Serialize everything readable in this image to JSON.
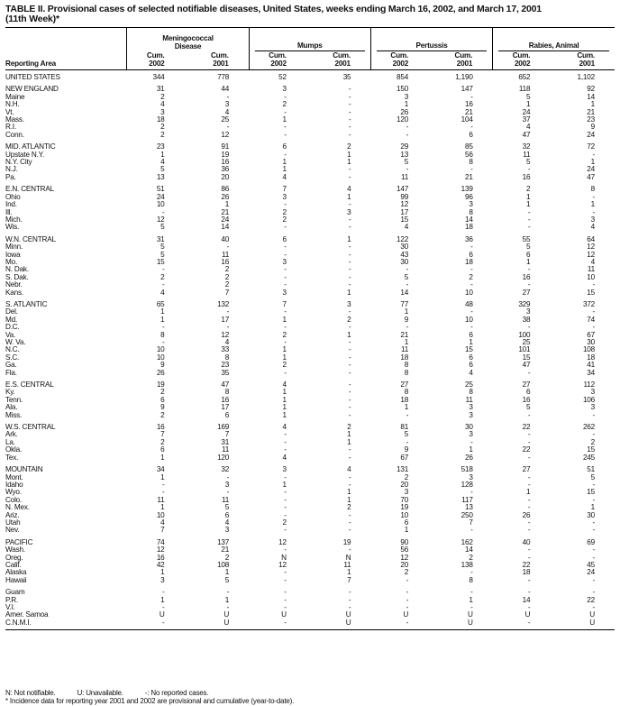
{
  "title": "TABLE II. Provisional cases of selected notifiable diseases, United States, weeks ending March 16, 2002, and March 17, 2001",
  "subtitle": "(11th Week)*",
  "header": {
    "area": "Reporting Area",
    "groups": [
      "Meningococcal Disease",
      "Mumps",
      "Pertussis",
      "Rabies, Animal"
    ],
    "sub": [
      "Cum. 2002",
      "Cum. 2001"
    ]
  },
  "rows": [
    {
      "name": "UNITED STATES",
      "v": [
        "344",
        "778",
        "52",
        "35",
        "854",
        "1,190",
        "652",
        "1,102"
      ]
    },
    {
      "name": "NEW ENGLAND",
      "v": [
        "31",
        "44",
        "3",
        "-",
        "150",
        "147",
        "118",
        "92"
      ]
    },
    {
      "name": "Maine",
      "v": [
        "2",
        "-",
        "-",
        "-",
        "3",
        "-",
        "5",
        "14"
      ]
    },
    {
      "name": "N.H.",
      "v": [
        "4",
        "3",
        "2",
        "-",
        "1",
        "16",
        "1",
        "1"
      ]
    },
    {
      "name": "Vt.",
      "v": [
        "3",
        "4",
        "-",
        "-",
        "26",
        "21",
        "24",
        "21"
      ]
    },
    {
      "name": "Mass.",
      "v": [
        "18",
        "25",
        "1",
        "-",
        "120",
        "104",
        "37",
        "23"
      ]
    },
    {
      "name": "R.I.",
      "v": [
        "2",
        "-",
        "-",
        "-",
        "-",
        "-",
        "4",
        "9"
      ]
    },
    {
      "name": "Conn.",
      "v": [
        "2",
        "12",
        "-",
        "-",
        "-",
        "6",
        "47",
        "24"
      ]
    },
    {
      "name": "MID. ATLANTIC",
      "v": [
        "23",
        "91",
        "6",
        "2",
        "29",
        "85",
        "32",
        "72"
      ]
    },
    {
      "name": "Upstate N.Y.",
      "v": [
        "1",
        "19",
        "-",
        "1",
        "13",
        "56",
        "11",
        "-"
      ]
    },
    {
      "name": "N.Y. City",
      "v": [
        "4",
        "16",
        "1",
        "1",
        "5",
        "8",
        "5",
        "1"
      ]
    },
    {
      "name": "N.J.",
      "v": [
        "5",
        "36",
        "1",
        "-",
        "-",
        "-",
        "-",
        "24"
      ]
    },
    {
      "name": "Pa.",
      "v": [
        "13",
        "20",
        "4",
        "-",
        "11",
        "21",
        "16",
        "47"
      ]
    },
    {
      "name": "E.N. CENTRAL",
      "v": [
        "51",
        "86",
        "7",
        "4",
        "147",
        "139",
        "2",
        "8"
      ]
    },
    {
      "name": "Ohio",
      "v": [
        "24",
        "26",
        "3",
        "1",
        "99",
        "96",
        "1",
        "-"
      ]
    },
    {
      "name": "Ind.",
      "v": [
        "10",
        "1",
        "-",
        "-",
        "12",
        "3",
        "1",
        "1"
      ]
    },
    {
      "name": "Ill.",
      "v": [
        "-",
        "21",
        "2",
        "3",
        "17",
        "8",
        "-",
        "-"
      ]
    },
    {
      "name": "Mich.",
      "v": [
        "12",
        "24",
        "2",
        "-",
        "15",
        "14",
        "-",
        "3"
      ]
    },
    {
      "name": "Wis.",
      "v": [
        "5",
        "14",
        "-",
        "-",
        "4",
        "18",
        "-",
        "4"
      ]
    },
    {
      "name": "W.N. CENTRAL",
      "v": [
        "31",
        "40",
        "6",
        "1",
        "122",
        "36",
        "55",
        "64"
      ]
    },
    {
      "name": "Minn.",
      "v": [
        "5",
        "-",
        "-",
        "-",
        "30",
        "-",
        "5",
        "12"
      ]
    },
    {
      "name": "Iowa",
      "v": [
        "5",
        "11",
        "-",
        "-",
        "43",
        "6",
        "6",
        "12"
      ]
    },
    {
      "name": "Mo.",
      "v": [
        "15",
        "16",
        "3",
        "-",
        "30",
        "18",
        "1",
        "4"
      ]
    },
    {
      "name": "N. Dak.",
      "v": [
        "-",
        "2",
        "-",
        "-",
        "-",
        "-",
        "-",
        "11"
      ]
    },
    {
      "name": "S. Dak.",
      "v": [
        "2",
        "2",
        "-",
        "-",
        "5",
        "2",
        "16",
        "10"
      ]
    },
    {
      "name": "Nebr.",
      "v": [
        "-",
        "2",
        "-",
        "-",
        "-",
        "-",
        "-",
        "-"
      ]
    },
    {
      "name": "Kans.",
      "v": [
        "4",
        "7",
        "3",
        "1",
        "14",
        "10",
        "27",
        "15"
      ]
    },
    {
      "name": "S. ATLANTIC",
      "v": [
        "65",
        "132",
        "7",
        "3",
        "77",
        "48",
        "329",
        "372"
      ]
    },
    {
      "name": "Del.",
      "v": [
        "1",
        "-",
        "-",
        "-",
        "1",
        "-",
        "3",
        "-"
      ]
    },
    {
      "name": "Md.",
      "v": [
        "1",
        "17",
        "1",
        "2",
        "9",
        "10",
        "38",
        "74"
      ]
    },
    {
      "name": "D.C.",
      "v": [
        "-",
        "-",
        "-",
        "-",
        "-",
        "-",
        "-",
        "-"
      ]
    },
    {
      "name": "Va.",
      "v": [
        "8",
        "12",
        "2",
        "1",
        "21",
        "6",
        "100",
        "67"
      ]
    },
    {
      "name": "W. Va.",
      "v": [
        "-",
        "4",
        "-",
        "-",
        "1",
        "1",
        "25",
        "30"
      ]
    },
    {
      "name": "N.C.",
      "v": [
        "10",
        "33",
        "1",
        "-",
        "11",
        "15",
        "101",
        "108"
      ]
    },
    {
      "name": "S.C.",
      "v": [
        "10",
        "8",
        "1",
        "-",
        "18",
        "6",
        "15",
        "18"
      ]
    },
    {
      "name": "Ga.",
      "v": [
        "9",
        "23",
        "2",
        "-",
        "8",
        "6",
        "47",
        "41"
      ]
    },
    {
      "name": "Fla.",
      "v": [
        "26",
        "35",
        "-",
        "-",
        "8",
        "4",
        "-",
        "34"
      ]
    },
    {
      "name": "E.S. CENTRAL",
      "v": [
        "19",
        "47",
        "4",
        "-",
        "27",
        "25",
        "27",
        "112"
      ]
    },
    {
      "name": "Ky.",
      "v": [
        "2",
        "8",
        "1",
        "-",
        "8",
        "8",
        "6",
        "3"
      ]
    },
    {
      "name": "Tenn.",
      "v": [
        "6",
        "16",
        "1",
        "-",
        "18",
        "11",
        "16",
        "106"
      ]
    },
    {
      "name": "Ala.",
      "v": [
        "9",
        "17",
        "1",
        "-",
        "1",
        "3",
        "5",
        "3"
      ]
    },
    {
      "name": "Miss.",
      "v": [
        "2",
        "6",
        "1",
        "-",
        "-",
        "3",
        "-",
        "-"
      ]
    },
    {
      "name": "W.S. CENTRAL",
      "v": [
        "16",
        "169",
        "4",
        "2",
        "81",
        "30",
        "22",
        "262"
      ]
    },
    {
      "name": "Ark.",
      "v": [
        "7",
        "7",
        "-",
        "1",
        "5",
        "3",
        "-",
        "-"
      ]
    },
    {
      "name": "La.",
      "v": [
        "2",
        "31",
        "-",
        "1",
        "-",
        "-",
        "-",
        "2"
      ]
    },
    {
      "name": "Okla.",
      "v": [
        "6",
        "11",
        "-",
        "-",
        "9",
        "1",
        "22",
        "15"
      ]
    },
    {
      "name": "Tex.",
      "v": [
        "1",
        "120",
        "4",
        "-",
        "67",
        "26",
        "-",
        "245"
      ]
    },
    {
      "name": "MOUNTAIN",
      "v": [
        "34",
        "32",
        "3",
        "4",
        "131",
        "518",
        "27",
        "51"
      ]
    },
    {
      "name": "Mont.",
      "v": [
        "1",
        "-",
        "-",
        "-",
        "2",
        "3",
        "-",
        "5"
      ]
    },
    {
      "name": "Idaho",
      "v": [
        "-",
        "3",
        "1",
        "-",
        "20",
        "128",
        "-",
        "-"
      ]
    },
    {
      "name": "Wyo.",
      "v": [
        "-",
        "-",
        "-",
        "1",
        "3",
        "-",
        "1",
        "15"
      ]
    },
    {
      "name": "Colo.",
      "v": [
        "11",
        "11",
        "-",
        "1",
        "70",
        "117",
        "-",
        "-"
      ]
    },
    {
      "name": "N. Mex.",
      "v": [
        "1",
        "5",
        "-",
        "2",
        "19",
        "13",
        "-",
        "1"
      ]
    },
    {
      "name": "Ariz.",
      "v": [
        "10",
        "6",
        "-",
        "-",
        "10",
        "250",
        "26",
        "30"
      ]
    },
    {
      "name": "Utah",
      "v": [
        "4",
        "4",
        "2",
        "-",
        "6",
        "7",
        "-",
        "-"
      ]
    },
    {
      "name": "Nev.",
      "v": [
        "7",
        "3",
        "-",
        "-",
        "1",
        "-",
        "-",
        "-"
      ]
    },
    {
      "name": "PACIFIC",
      "v": [
        "74",
        "137",
        "12",
        "19",
        "90",
        "162",
        "40",
        "69"
      ]
    },
    {
      "name": "Wash.",
      "v": [
        "12",
        "21",
        "-",
        "-",
        "56",
        "14",
        "-",
        "-"
      ]
    },
    {
      "name": "Oreg.",
      "v": [
        "16",
        "2",
        "N",
        "N",
        "12",
        "2",
        "-",
        "-"
      ]
    },
    {
      "name": "Calif.",
      "v": [
        "42",
        "108",
        "12",
        "11",
        "20",
        "138",
        "22",
        "45"
      ]
    },
    {
      "name": "Alaska",
      "v": [
        "1",
        "1",
        "-",
        "1",
        "2",
        "-",
        "18",
        "24"
      ]
    },
    {
      "name": "Hawaii",
      "v": [
        "3",
        "5",
        "-",
        "7",
        "-",
        "8",
        "-",
        "-"
      ]
    },
    {
      "name": "Guam",
      "v": [
        "-",
        "-",
        "-",
        "-",
        "-",
        "-",
        "-",
        "-"
      ]
    },
    {
      "name": "P.R.",
      "v": [
        "1",
        "1",
        "-",
        "-",
        "-",
        "1",
        "14",
        "22"
      ]
    },
    {
      "name": "V.I.",
      "v": [
        "-",
        "-",
        "-",
        "-",
        "-",
        "-",
        "-",
        "-"
      ]
    },
    {
      "name": "Amer. Samoa",
      "v": [
        "U",
        "U",
        "U",
        "U",
        "U",
        "U",
        "U",
        "U"
      ]
    },
    {
      "name": "C.N.M.I.",
      "v": [
        "-",
        "U",
        "-",
        "U",
        "-",
        "U",
        "-",
        "U"
      ]
    }
  ],
  "footer": {
    "legend": [
      "N: Not notifiable.",
      "U: Unavailable.",
      "-: No reported cases."
    ],
    "note": "* Incidence data for reporting year 2001 and 2002 are provisional and cumulative (year-to-date)."
  }
}
